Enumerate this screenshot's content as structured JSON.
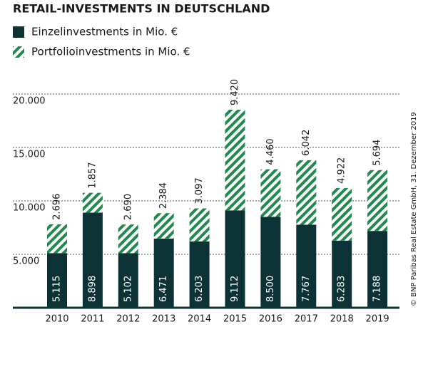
{
  "chart_data": {
    "type": "stacked-bar",
    "title": "RETAIL-INVESTMENTS IN DEUTSCHLAND",
    "categories": [
      "2010",
      "2011",
      "2012",
      "2013",
      "2014",
      "2015",
      "2016",
      "2017",
      "2018",
      "2019"
    ],
    "series": [
      {
        "name": "Einzelinvestments in Mio. €",
        "color": "#0d3236",
        "hatch": false,
        "values": [
          5115,
          8898,
          5102,
          6471,
          6203,
          9112,
          8500,
          7767,
          6283,
          7188
        ],
        "value_labels": [
          "5.115",
          "8.898",
          "5.102",
          "6.471",
          "6.203",
          "9.112",
          "8.500",
          "7.767",
          "6.283",
          "7.188"
        ]
      },
      {
        "name": "Portfolioinvestments in Mio. €",
        "color": "#1f8a4c",
        "hatch": true,
        "values": [
          2696,
          1857,
          2690,
          2384,
          3097,
          9420,
          4460,
          6042,
          4922,
          5694
        ],
        "value_labels": [
          "2.696",
          "1.857",
          "2.690",
          "2.384",
          "3.097",
          "9.420",
          "4.460",
          "6.042",
          "4.922",
          "5.694"
        ]
      }
    ],
    "ylim": [
      0,
      20000
    ],
    "yticks": [
      {
        "value": 5000,
        "label": "5.000"
      },
      {
        "value": 10000,
        "label": "10.000"
      },
      {
        "value": 15000,
        "label": "15.000"
      },
      {
        "value": 20000,
        "label": "20.000"
      }
    ],
    "grid": true,
    "source": "© BNP Paribas Real Estate GmbH, 31. Dezember 2019"
  }
}
